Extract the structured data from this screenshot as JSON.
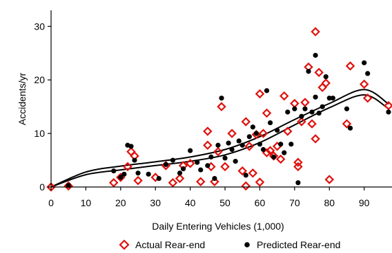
{
  "chart_data": {
    "type": "scatter",
    "title": "",
    "xlabel": "Daily Entering Vehicles (1,000)",
    "ylabel": "Accidents/yr",
    "xlim": [
      0,
      98
    ],
    "ylim": [
      0,
      33
    ],
    "x_ticks": [
      0,
      10,
      20,
      30,
      40,
      50,
      60,
      70,
      80,
      90
    ],
    "y_ticks": [
      0,
      10,
      20,
      30
    ],
    "x_tick_labels": [
      "0",
      "10",
      "20",
      "30",
      "40",
      "50",
      "60",
      "70",
      "80",
      "90"
    ],
    "y_tick_labels": [
      "0",
      "10",
      "20",
      "30"
    ],
    "grid": false,
    "legend_position": "bottom",
    "colors": {
      "actual": "#e0110c",
      "predicted": "#000000",
      "axis": "#000000"
    },
    "series": [
      {
        "name": "Actual Rear-end",
        "marker": "diamond-open",
        "x": [
          0,
          5,
          18,
          20,
          22,
          23,
          24,
          25,
          30,
          33,
          35,
          37,
          38,
          40,
          43,
          45,
          45,
          46,
          47,
          48,
          49,
          50,
          52,
          55,
          56,
          56,
          57,
          58,
          59,
          60,
          60,
          61,
          62,
          62,
          63,
          64,
          65,
          66,
          67,
          68,
          70,
          71,
          71,
          72,
          73,
          74,
          75,
          76,
          76,
          77,
          78,
          79,
          80,
          85,
          86,
          90,
          91,
          97
        ],
        "y": [
          0,
          0.2,
          0.8,
          1.8,
          3.8,
          6.6,
          5.8,
          1.2,
          1.8,
          4.0,
          0.8,
          1.6,
          4.0,
          4.4,
          1.0,
          10.4,
          7.8,
          3.8,
          1.0,
          6.6,
          15.0,
          3.8,
          10.0,
          3.0,
          0.2,
          12.2,
          7.6,
          2.6,
          9.8,
          0.9,
          17.4,
          10.0,
          6.4,
          13.8,
          6.8,
          5.8,
          7.6,
          5.2,
          17.0,
          10.4,
          15.6,
          4.6,
          3.8,
          12.2,
          15.8,
          22.4,
          11.8,
          29.0,
          9.0,
          21.4,
          18.6,
          19.4,
          1.4,
          11.8,
          22.6,
          19.2,
          16.6,
          15.2
        ]
      },
      {
        "name": "Predicted Rear-end",
        "marker": "circle-filled",
        "x": [
          5,
          18,
          20,
          21,
          22,
          23,
          24,
          25,
          28,
          31,
          33,
          35,
          37,
          38,
          40,
          42,
          43,
          45,
          46,
          47,
          48,
          49,
          50,
          51,
          52,
          53,
          54,
          55,
          56,
          57,
          58,
          59,
          60,
          61,
          62,
          63,
          64,
          65,
          66,
          67,
          68,
          69,
          70,
          71,
          72,
          73,
          74,
          75,
          76,
          76,
          77,
          78,
          79,
          80,
          81,
          85,
          86,
          90,
          91,
          97
        ],
        "y": [
          0.3,
          3.0,
          1.8,
          2.4,
          7.8,
          7.6,
          5.0,
          2.6,
          2.4,
          1.6,
          4.2,
          5.0,
          2.6,
          3.4,
          6.8,
          4.6,
          3.2,
          4.0,
          5.6,
          1.6,
          7.8,
          16.6,
          5.4,
          8.2,
          7.0,
          4.8,
          8.6,
          7.8,
          2.2,
          9.4,
          11.2,
          10.0,
          8.0,
          7.0,
          18.0,
          12.0,
          5.6,
          10.6,
          8.0,
          6.4,
          14.0,
          8.0,
          14.6,
          0.8,
          13.2,
          14.6,
          21.6,
          14.0,
          24.6,
          16.8,
          13.8,
          15.0,
          20.6,
          16.6,
          16.6,
          14.6,
          11.0,
          23.2,
          21.2,
          14.0
        ]
      },
      {
        "name": "",
        "type": "line",
        "x": [
          0,
          10,
          20,
          30,
          40,
          50,
          60,
          70,
          80,
          90,
          97
        ],
        "y": [
          0,
          2.8,
          3.9,
          4.7,
          5.6,
          7.0,
          9.4,
          12.6,
          15.6,
          18.2,
          15.5
        ]
      },
      {
        "name": "",
        "type": "line",
        "x": [
          0,
          10,
          20,
          30,
          40,
          50,
          60,
          70,
          80,
          90,
          97
        ],
        "y": [
          0,
          2.3,
          3.2,
          4.0,
          4.8,
          6.0,
          8.3,
          11.6,
          14.8,
          17.2,
          14.6
        ]
      }
    ]
  }
}
